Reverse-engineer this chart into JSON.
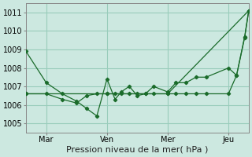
{
  "background_color": "#cce8e0",
  "grid_color": "#99ccbb",
  "line_color": "#1a6b2a",
  "marker_color": "#1a6b2a",
  "xlabel": "Pression niveau de la mer( hPa )",
  "ylim": [
    1004.5,
    1011.5
  ],
  "yticks": [
    1005,
    1006,
    1007,
    1008,
    1009,
    1010,
    1011
  ],
  "day_labels": [
    "Mar",
    "Ven",
    "Mer",
    "Jeu"
  ],
  "day_positions": [
    1,
    4,
    7,
    10
  ],
  "xlim": [
    0,
    11
  ],
  "series1_x": [
    0,
    1,
    1.8,
    2.5,
    3.0,
    3.5,
    4.0,
    4.4,
    4.7,
    5.1,
    5.5,
    5.9,
    6.3,
    7.0,
    7.4,
    7.9,
    8.4,
    8.9,
    10.0,
    10.4,
    10.8,
    11.0
  ],
  "series1_y": [
    1008.9,
    1007.2,
    1006.6,
    1006.2,
    1005.8,
    1005.4,
    1007.4,
    1006.3,
    1006.7,
    1007.0,
    1006.5,
    1006.6,
    1007.0,
    1006.7,
    1007.2,
    1007.2,
    1007.5,
    1007.5,
    1008.0,
    1007.6,
    1009.7,
    1011.1
  ],
  "series2_x": [
    0,
    1,
    1.8,
    2.5,
    3.0,
    3.5,
    4.0,
    4.4,
    4.7,
    5.1,
    5.5,
    5.9,
    6.3,
    7.0,
    7.4,
    7.9,
    8.4,
    8.9,
    10.0,
    10.4,
    10.8,
    11.0
  ],
  "series2_y": [
    1006.6,
    1006.6,
    1006.3,
    1006.1,
    1006.5,
    1006.6,
    1006.6,
    1006.6,
    1006.6,
    1006.6,
    1006.6,
    1006.6,
    1006.6,
    1006.6,
    1006.6,
    1006.6,
    1006.6,
    1006.6,
    1006.6,
    1007.6,
    1009.65,
    1011.1
  ],
  "series3_x": [
    0,
    4.0,
    7.0,
    11.0
  ],
  "series3_y": [
    1006.6,
    1006.6,
    1006.6,
    1011.1
  ],
  "vline_positions": [
    1,
    4,
    7,
    10
  ],
  "xlabel_fontsize": 8,
  "tick_fontsize": 7
}
